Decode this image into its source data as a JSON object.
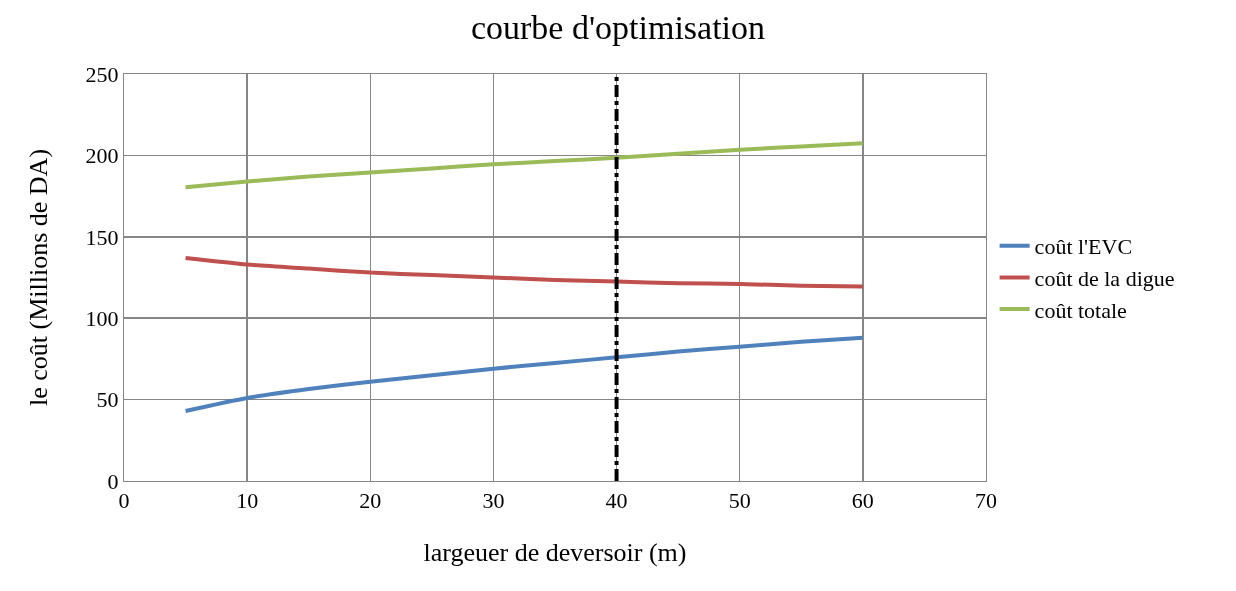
{
  "chart_data": {
    "type": "line",
    "title": "courbe d'optimisation",
    "xlabel": "largeuer de deversoir (m)",
    "ylabel": "le coût (Millions de DA)",
    "x": [
      5,
      10,
      15,
      20,
      25,
      30,
      35,
      40,
      45,
      50,
      55,
      60
    ],
    "series": [
      {
        "name": "coût l'EVC",
        "color": "#4f81bd",
        "values": [
          43,
          51,
          56.5,
          61,
          65,
          69,
          72.5,
          76,
          79.5,
          82.5,
          85.5,
          88
        ]
      },
      {
        "name": "coût de la digue",
        "color": "#c0504d",
        "values": [
          137,
          133,
          130.5,
          128,
          126.5,
          125,
          123.5,
          122.5,
          121.5,
          121,
          120,
          119.5
        ]
      },
      {
        "name": "coût totale",
        "color": "#9bbb59",
        "values": [
          180.5,
          184,
          187,
          189.5,
          192,
          194.5,
          196.5,
          198.5,
          201,
          203.5,
          205.5,
          207.5
        ]
      }
    ],
    "xlim": [
      0,
      70
    ],
    "xticks": [
      0,
      10,
      20,
      30,
      40,
      50,
      60,
      70
    ],
    "ylim": [
      0,
      250
    ],
    "yticks": [
      0,
      50,
      100,
      150,
      200,
      250
    ],
    "ref_lines": [
      {
        "axis": "x",
        "value": 40,
        "color": "#000000",
        "line_style": "dashdot"
      }
    ],
    "grid": true,
    "legend": "right",
    "marker": "none",
    "line_style": "solid"
  }
}
